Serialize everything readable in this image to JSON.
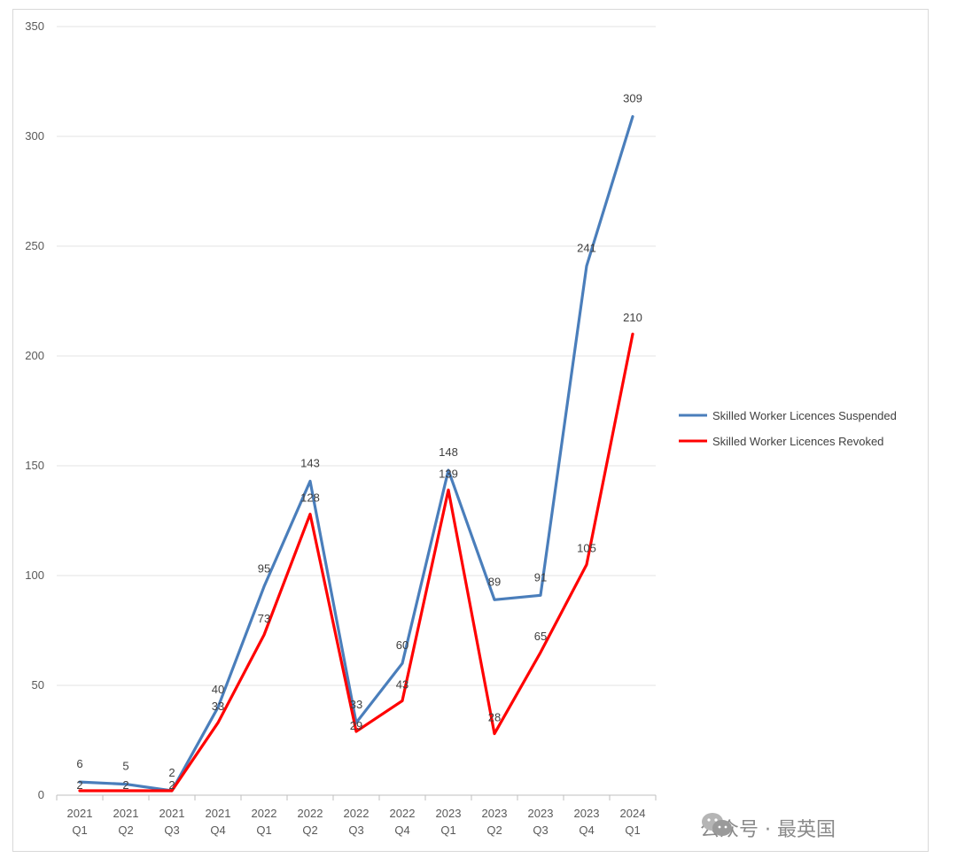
{
  "chart_data": {
    "type": "line",
    "title": "",
    "xlabel": "",
    "ylabel": "",
    "ylim": [
      0,
      350
    ],
    "yticks": [
      0,
      50,
      100,
      150,
      200,
      250,
      300,
      350
    ],
    "grid": true,
    "legend": "right",
    "categories": [
      [
        "2021",
        "Q1"
      ],
      [
        "2021",
        "Q2"
      ],
      [
        "2021",
        "Q3"
      ],
      [
        "2021",
        "Q4"
      ],
      [
        "2022",
        "Q1"
      ],
      [
        "2022",
        "Q2"
      ],
      [
        "2022",
        "Q3"
      ],
      [
        "2022",
        "Q4"
      ],
      [
        "2023",
        "Q1"
      ],
      [
        "2023",
        "Q2"
      ],
      [
        "2023",
        "Q3"
      ],
      [
        "2023",
        "Q4"
      ],
      [
        "2024",
        "Q1"
      ]
    ],
    "series": [
      {
        "name": "Skilled Worker Licences Suspended",
        "color": "#4a7ebb",
        "values": [
          6,
          5,
          2,
          40,
          95,
          143,
          33,
          60,
          148,
          89,
          91,
          241,
          309
        ]
      },
      {
        "name": "Skilled Worker Licences Revoked",
        "color": "#ff0000",
        "values": [
          2,
          2,
          2,
          33,
          73,
          128,
          29,
          43,
          139,
          28,
          65,
          105,
          210
        ]
      }
    ]
  },
  "watermark": {
    "text": "公众号 · 最英国",
    "icon": "wechat-icon"
  }
}
